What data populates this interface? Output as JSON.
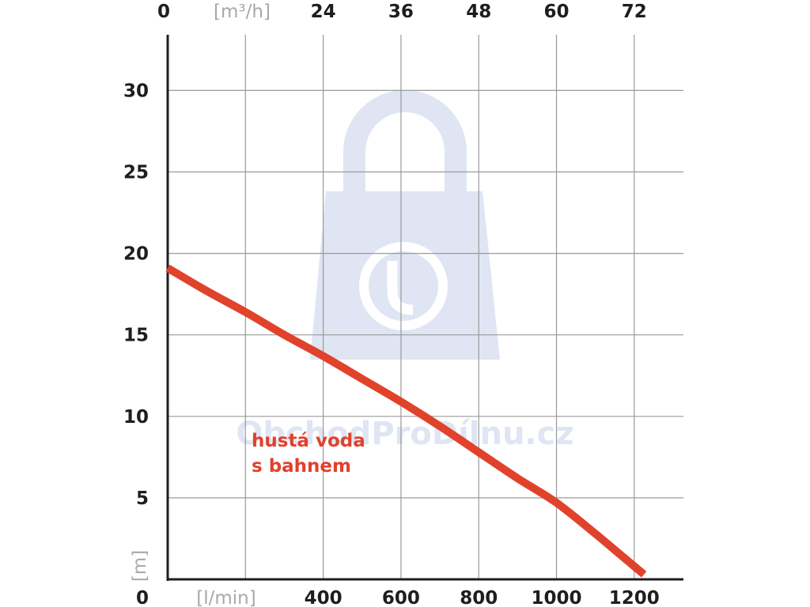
{
  "chart_data": {
    "type": "line",
    "x_bottom": {
      "unit_label": "[l/min]",
      "origin_label": "0",
      "ticks": [
        "400",
        "600",
        "800",
        "1000",
        "1200"
      ],
      "range": [
        0,
        1300
      ]
    },
    "x_top": {
      "unit_label": "[m³/h]",
      "origin_label": "0",
      "ticks": [
        "24",
        "36",
        "48",
        "60",
        "72"
      ]
    },
    "y": {
      "unit_label": "[m]",
      "origin_label": "0",
      "ticks": [
        "5",
        "10",
        "15",
        "20",
        "25",
        "30"
      ],
      "range": [
        0,
        33.5
      ]
    },
    "grid": true,
    "series": [
      {
        "name": "hustá voda s bahnem",
        "name_lines": [
          "hustá voda",
          "s bahnem"
        ],
        "color": "#e0422c",
        "x": [
          0,
          100,
          200,
          300,
          400,
          500,
          600,
          700,
          800,
          900,
          1000,
          1100,
          1150,
          1200,
          1225
        ],
        "y": [
          19.1,
          17.7,
          16.4,
          15.0,
          13.7,
          12.3,
          10.9,
          9.4,
          7.8,
          6.2,
          4.7,
          2.8,
          1.8,
          0.8,
          0.3
        ]
      }
    ],
    "watermark": {
      "text": "ObchodProDílnu.cz",
      "icon": "shopping-bag-wrench-icon",
      "color": "#dfe5f3"
    }
  }
}
